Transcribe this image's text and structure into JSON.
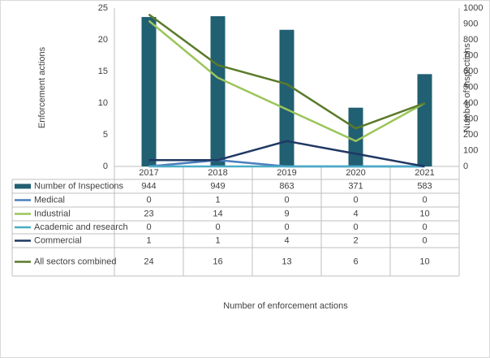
{
  "chart_data": {
    "type": "bar-line-table",
    "x_axis_label": "Number of enforcement actions",
    "y_axis_label": "Enforcement actions",
    "y2_axis_label": "Number of inspections",
    "categories": [
      "2017",
      "2018",
      "2019",
      "2020",
      "2021"
    ],
    "ylim": [
      0,
      25
    ],
    "yticks": [
      0,
      5,
      10,
      15,
      20,
      25
    ],
    "y2lim": [
      0,
      1000
    ],
    "y2ticks": [
      0,
      100,
      200,
      300,
      400,
      500,
      600,
      700,
      800,
      900,
      1000
    ],
    "series": [
      {
        "name": "Number of Inspections",
        "type": "bar",
        "axis": "y2",
        "color": "#215f72",
        "values": [
          944,
          949,
          863,
          371,
          583
        ]
      },
      {
        "name": "Medical",
        "type": "line",
        "color": "#4a7ebb",
        "values": [
          0,
          1,
          0,
          0,
          0
        ]
      },
      {
        "name": "Industrial",
        "type": "line",
        "color": "#9bc55a",
        "values": [
          23,
          14,
          9,
          4,
          10
        ]
      },
      {
        "name": "Academic and research",
        "type": "line",
        "color": "#4bacc6",
        "values": [
          0,
          0,
          0,
          0,
          0
        ]
      },
      {
        "name": "Commercial",
        "type": "line",
        "color": "#1f3864",
        "values": [
          1,
          1,
          4,
          2,
          0
        ]
      },
      {
        "name": "All sectors combined",
        "type": "line",
        "color": "#5a7a2a",
        "values": [
          24,
          16,
          13,
          6,
          10
        ]
      }
    ]
  }
}
